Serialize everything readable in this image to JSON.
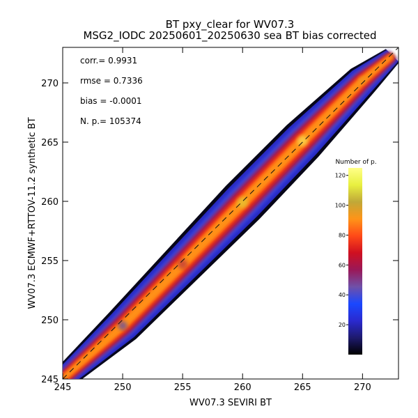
{
  "chart_data": {
    "type": "heatmap",
    "title": "BT pxy_clear for WV07.3",
    "subtitle": "MSG2_IODC 20250601_20250630 sea BT bias corrected",
    "xlabel": "WV07.3 SEVIRI BT",
    "ylabel": "WV07.3 ECMWF+RTTOV-11.2 synthetic BT",
    "xlim": [
      245,
      273
    ],
    "ylim": [
      245,
      273
    ],
    "x_ticks": [
      245,
      250,
      255,
      260,
      265,
      270
    ],
    "y_ticks": [
      245,
      250,
      255,
      260,
      265,
      270
    ],
    "stats": [
      {
        "label": "corr.=",
        "value": "0.9931"
      },
      {
        "label": "rmse =",
        "value": "0.7336"
      },
      {
        "label": "bias =",
        "value": "-0.0001"
      },
      {
        "label": "N. p.=",
        "value": "105374"
      }
    ],
    "colorbar": {
      "label": "Number of p.",
      "min": 0,
      "max": 125,
      "ticks": [
        20,
        40,
        60,
        80,
        100,
        120
      ],
      "colors": [
        "#000000",
        "#1e1a6e",
        "#2a2ad0",
        "#1a48ff",
        "#7050a8",
        "#9a1858",
        "#d01020",
        "#ff4a18",
        "#ff9418",
        "#c0a838",
        "#e8f040",
        "#ffff88"
      ]
    },
    "density_ridge": {
      "x": [
        245,
        250,
        255,
        260,
        265,
        270,
        272.5
      ],
      "y": [
        245,
        249.5,
        254.7,
        259.9,
        265.1,
        270.2,
        272.3
      ],
      "half_width": [
        1.0,
        1.6,
        1.8,
        2.0,
        1.9,
        1.4,
        0.8
      ],
      "peak_counts": [
        8,
        25,
        60,
        110,
        120,
        95,
        50
      ]
    },
    "fit_line": {
      "x": [
        245,
        273
      ],
      "y": [
        245,
        273
      ],
      "style": "dashed"
    }
  }
}
